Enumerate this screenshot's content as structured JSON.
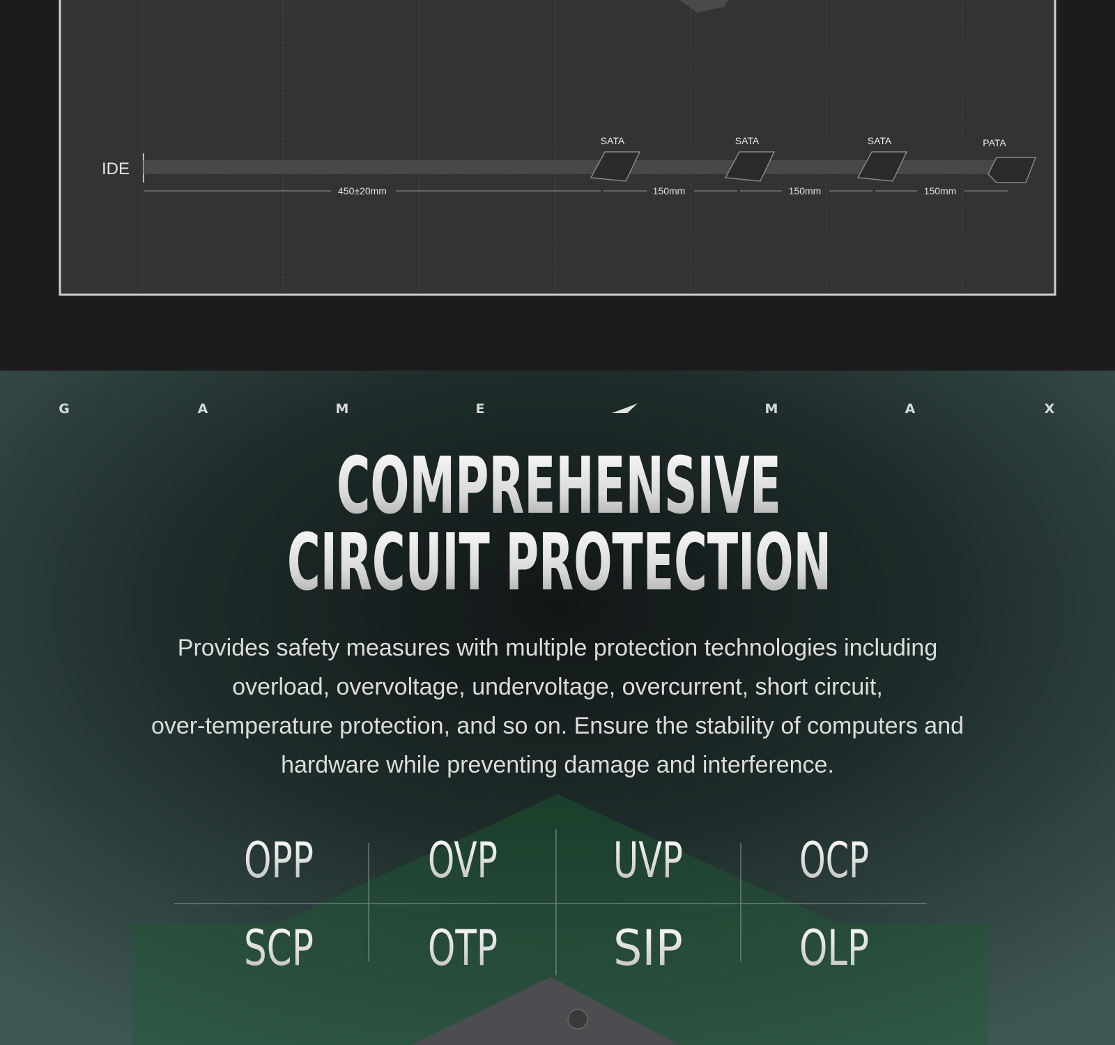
{
  "cable": {
    "start_label": "IDE",
    "connectors": [
      "SATA",
      "SATA",
      "SATA",
      "PATA"
    ],
    "dimensions": [
      "450±20mm",
      "150mm",
      "150mm",
      "150mm"
    ]
  },
  "brand": [
    "G",
    "A",
    "M",
    "E",
    "M",
    "A",
    "X"
  ],
  "headline": [
    "COMPREHENSIVE",
    "CIRCUIT PROTECTION"
  ],
  "description": [
    "Provides safety measures with multiple protection technologies including",
    "overload, overvoltage, undervoltage, overcurrent, short circuit,",
    "over-temperature protection, and so on. Ensure the stability of computers and",
    "hardware while preventing damage and interference."
  ],
  "protections": [
    [
      "OPP",
      "OVP",
      "UVP",
      "OCP"
    ],
    [
      "SCP",
      "OTP",
      "SIP",
      "OLP"
    ]
  ]
}
